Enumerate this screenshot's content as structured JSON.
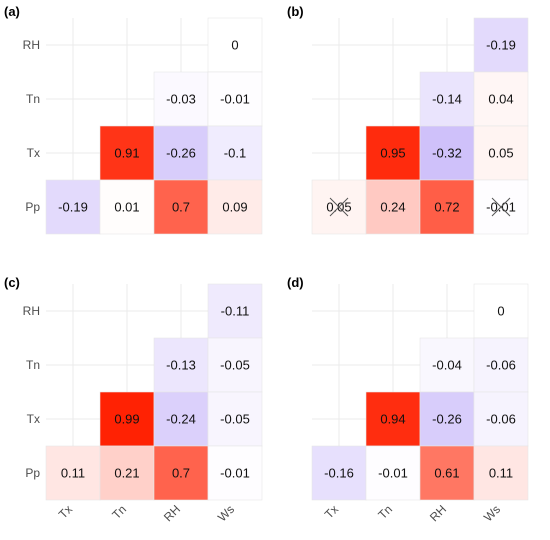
{
  "chart_data": [
    {
      "type": "heatmap",
      "panel_label": "(a)",
      "rows": [
        "RH",
        "Tn",
        "Tx",
        "Pp"
      ],
      "columns": [
        "Tx",
        "Tn",
        "RH",
        "Ws"
      ],
      "show_column_ticks": false,
      "cells": [
        {
          "row": "RH",
          "col": "Ws",
          "value": 0,
          "label": "0"
        },
        {
          "row": "Tn",
          "col": "RH",
          "value": -0.03,
          "label": "-0.03"
        },
        {
          "row": "Tn",
          "col": "Ws",
          "value": -0.01,
          "label": "-0.01"
        },
        {
          "row": "Tx",
          "col": "Tn",
          "value": 0.91,
          "label": "0.91"
        },
        {
          "row": "Tx",
          "col": "RH",
          "value": -0.26,
          "label": "-0.26"
        },
        {
          "row": "Tx",
          "col": "Ws",
          "value": -0.1,
          "label": "-0.1"
        },
        {
          "row": "Pp",
          "col": "Tx",
          "value": -0.19,
          "label": "-0.19"
        },
        {
          "row": "Pp",
          "col": "Tn",
          "value": 0.01,
          "label": "0.01"
        },
        {
          "row": "Pp",
          "col": "RH",
          "value": 0.7,
          "label": "0.7"
        },
        {
          "row": "Pp",
          "col": "Ws",
          "value": 0.09,
          "label": "0.09"
        }
      ]
    },
    {
      "type": "heatmap",
      "panel_label": "(b)",
      "rows": [
        "RH",
        "Tn",
        "Tx",
        "Pp"
      ],
      "columns": [
        "Tx",
        "Tn",
        "RH",
        "Ws"
      ],
      "show_column_ticks": false,
      "cells": [
        {
          "row": "RH",
          "col": "Ws",
          "value": -0.19,
          "label": "-0.19"
        },
        {
          "row": "Tn",
          "col": "RH",
          "value": -0.14,
          "label": "-0.14"
        },
        {
          "row": "Tn",
          "col": "Ws",
          "value": 0.04,
          "label": "0.04"
        },
        {
          "row": "Tx",
          "col": "Tn",
          "value": 0.95,
          "label": "0.95"
        },
        {
          "row": "Tx",
          "col": "RH",
          "value": -0.32,
          "label": "-0.32"
        },
        {
          "row": "Tx",
          "col": "Ws",
          "value": 0.05,
          "label": "0.05"
        },
        {
          "row": "Pp",
          "col": "Tx",
          "value": 0.05,
          "label": "0.05",
          "insignificant": true
        },
        {
          "row": "Pp",
          "col": "Tn",
          "value": 0.24,
          "label": "0.24"
        },
        {
          "row": "Pp",
          "col": "RH",
          "value": 0.72,
          "label": "0.72"
        },
        {
          "row": "Pp",
          "col": "Ws",
          "value": -0.01,
          "label": "-0.01",
          "insignificant": true
        }
      ]
    },
    {
      "type": "heatmap",
      "panel_label": "(c)",
      "rows": [
        "RH",
        "Tn",
        "Tx",
        "Pp"
      ],
      "columns": [
        "Tx",
        "Tn",
        "RH",
        "Ws"
      ],
      "show_column_ticks": true,
      "cells": [
        {
          "row": "RH",
          "col": "Ws",
          "value": -0.11,
          "label": "-0.11"
        },
        {
          "row": "Tn",
          "col": "RH",
          "value": -0.13,
          "label": "-0.13"
        },
        {
          "row": "Tn",
          "col": "Ws",
          "value": -0.05,
          "label": "-0.05"
        },
        {
          "row": "Tx",
          "col": "Tn",
          "value": 0.99,
          "label": "0.99"
        },
        {
          "row": "Tx",
          "col": "RH",
          "value": -0.24,
          "label": "-0.24"
        },
        {
          "row": "Tx",
          "col": "Ws",
          "value": -0.05,
          "label": "-0.05"
        },
        {
          "row": "Pp",
          "col": "Tx",
          "value": 0.11,
          "label": "0.11"
        },
        {
          "row": "Pp",
          "col": "Tn",
          "value": 0.21,
          "label": "0.21"
        },
        {
          "row": "Pp",
          "col": "RH",
          "value": 0.7,
          "label": "0.7"
        },
        {
          "row": "Pp",
          "col": "Ws",
          "value": -0.01,
          "label": "-0.01"
        }
      ]
    },
    {
      "type": "heatmap",
      "panel_label": "(d)",
      "rows": [
        "RH",
        "Tn",
        "Tx",
        "Pp"
      ],
      "columns": [
        "Tx",
        "Tn",
        "RH",
        "Ws"
      ],
      "show_column_ticks": true,
      "cells": [
        {
          "row": "RH",
          "col": "Ws",
          "value": 0,
          "label": "0"
        },
        {
          "row": "Tn",
          "col": "RH",
          "value": -0.04,
          "label": "-0.04"
        },
        {
          "row": "Tn",
          "col": "Ws",
          "value": -0.06,
          "label": "-0.06"
        },
        {
          "row": "Tx",
          "col": "Tn",
          "value": 0.94,
          "label": "0.94"
        },
        {
          "row": "Tx",
          "col": "RH",
          "value": -0.26,
          "label": "-0.26"
        },
        {
          "row": "Tx",
          "col": "Ws",
          "value": -0.06,
          "label": "-0.06"
        },
        {
          "row": "Pp",
          "col": "Tx",
          "value": -0.16,
          "label": "-0.16"
        },
        {
          "row": "Pp",
          "col": "Tn",
          "value": -0.01,
          "label": "-0.01"
        },
        {
          "row": "Pp",
          "col": "RH",
          "value": 0.61,
          "label": "0.61"
        },
        {
          "row": "Pp",
          "col": "Ws",
          "value": 0.11,
          "label": "0.11"
        }
      ]
    }
  ],
  "colors": {
    "positive": "#ff2000",
    "negative": "#6a3df0",
    "zero": "#ffffff",
    "grid": "#ebebeb",
    "tick_text": "#4d4d4d"
  }
}
